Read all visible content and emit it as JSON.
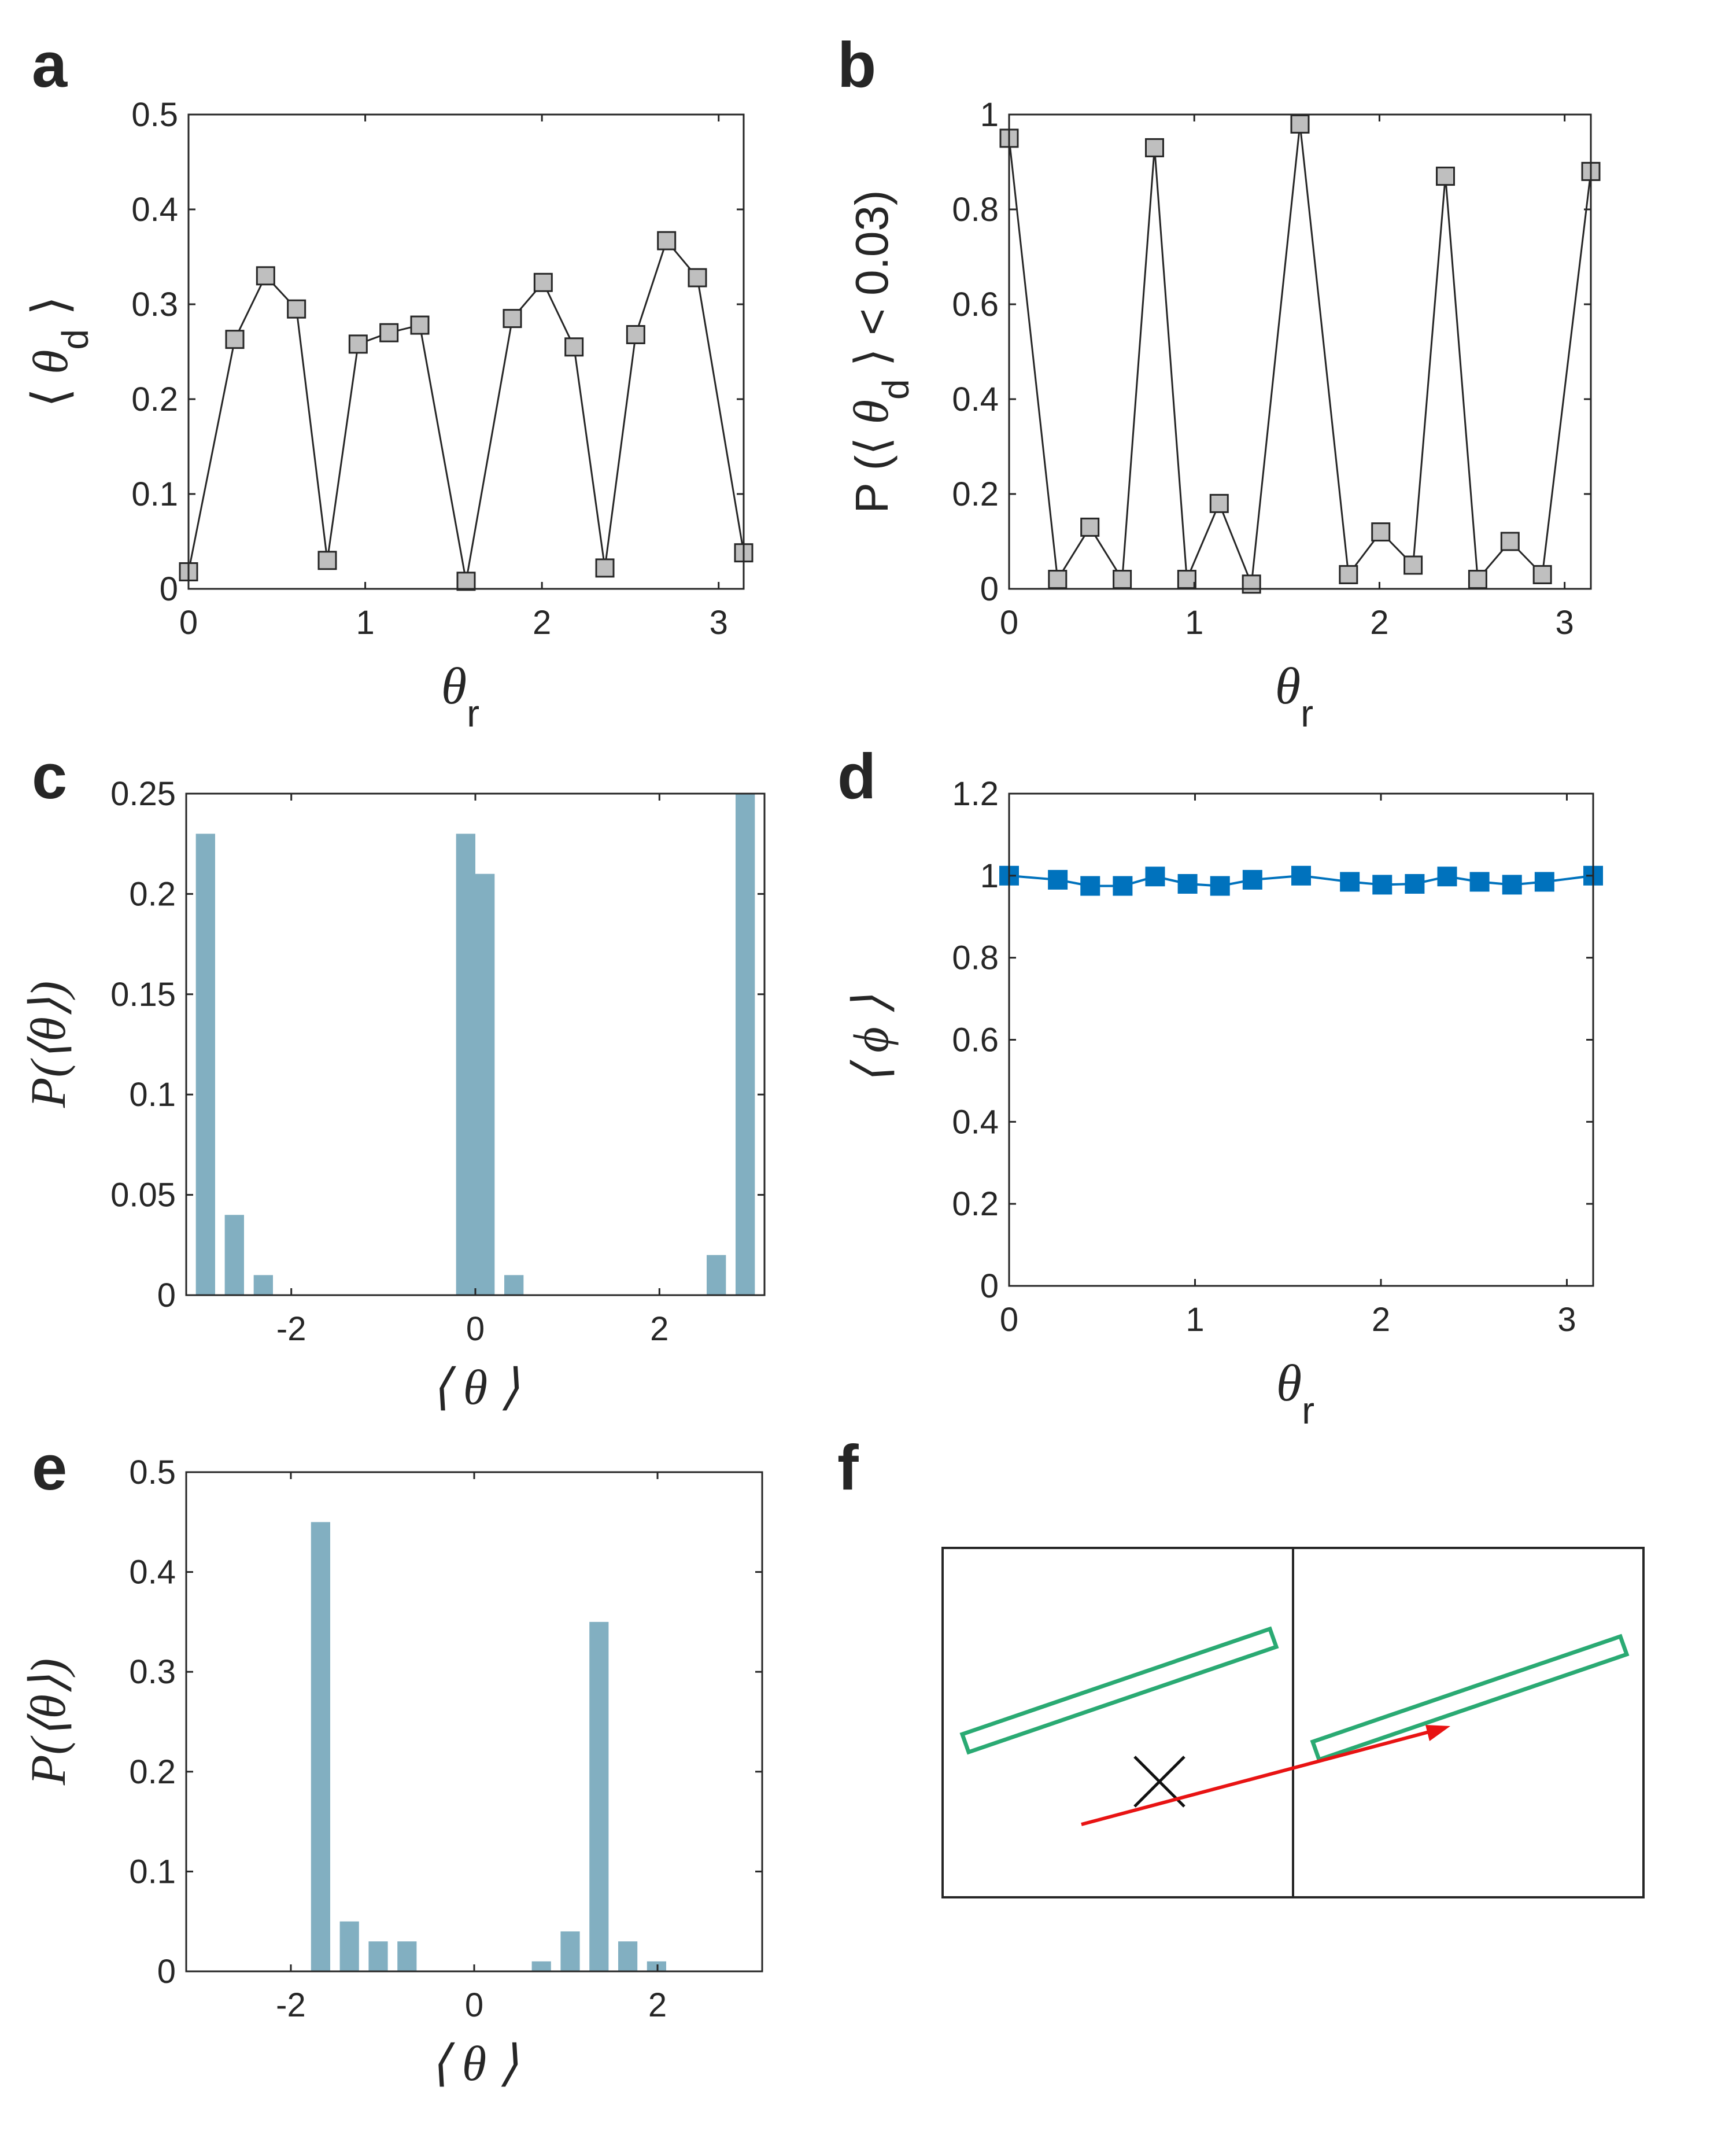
{
  "colors": {
    "axis": "#262626",
    "gray_marker": "#bfbfbf",
    "bar": "#82afc1",
    "blue": "#0072bd",
    "green": "#2aaa73",
    "red": "#e81313"
  },
  "chart_data": [
    {
      "panel": "a",
      "type": "line",
      "x": [
        0,
        0.2618,
        0.4363,
        0.6109,
        0.7854,
        0.9599,
        1.1345,
        1.309,
        1.5708,
        1.8326,
        2.0071,
        2.1817,
        2.3562,
        2.5307,
        2.7053,
        2.8798,
        3.1416
      ],
      "y": [
        0.018,
        0.263,
        0.33,
        0.295,
        0.03,
        0.258,
        0.27,
        0.278,
        0.008,
        0.285,
        0.323,
        0.255,
        0.022,
        0.268,
        0.367,
        0.328,
        0.038
      ],
      "xlim": [
        0,
        3.1416
      ],
      "ylim": [
        0,
        0.5
      ],
      "xticks": [
        0,
        1,
        2,
        3
      ],
      "yticks": [
        0,
        0.1,
        0.2,
        0.3,
        0.4,
        0.5
      ],
      "xtick_labels": [
        "0",
        "1",
        "2",
        "3"
      ],
      "ytick_labels": [
        "0",
        "0.1",
        "0.2",
        "0.3",
        "0.4",
        "0.5"
      ],
      "xlabel": {
        "main": "θ",
        "sub": "r"
      },
      "ylabel": {
        "left": "⟨",
        "main": "θ",
        "sub": "d",
        "right": "⟩"
      }
    },
    {
      "panel": "b",
      "type": "line",
      "x": [
        0,
        0.2618,
        0.4363,
        0.6109,
        0.7854,
        0.9599,
        1.1345,
        1.309,
        1.5708,
        1.8326,
        2.0071,
        2.1817,
        2.3562,
        2.5307,
        2.7053,
        2.8798,
        3.1416
      ],
      "y": [
        0.95,
        0.02,
        0.13,
        0.02,
        0.93,
        0.02,
        0.18,
        0.01,
        0.98,
        0.03,
        0.12,
        0.05,
        0.87,
        0.02,
        0.1,
        0.03,
        0.88
      ],
      "xlim": [
        0,
        3.1416
      ],
      "ylim": [
        0,
        1
      ],
      "xticks": [
        0,
        1,
        2,
        3
      ],
      "yticks": [
        0,
        0.2,
        0.4,
        0.6,
        0.8,
        1
      ],
      "xtick_labels": [
        "0",
        "1",
        "2",
        "3"
      ],
      "ytick_labels": [
        "0",
        "0.2",
        "0.4",
        "0.6",
        "0.8",
        "1"
      ],
      "xlabel": {
        "main": "θ",
        "sub": "r"
      },
      "ylabel": {
        "pre": "P (⟨ ",
        "main": "θ",
        "sub": "d",
        "post": " ⟩ < 0.03)"
      }
    },
    {
      "panel": "c",
      "type": "bar",
      "x": [
        -2.9322,
        -2.6181,
        -2.3038,
        -1.9897,
        -1.6755,
        -1.3614,
        -1.0472,
        -0.733,
        -0.4189,
        -0.1047,
        0.1047,
        0.4189,
        0.733,
        1.0472,
        1.3614,
        1.6755,
        1.9897,
        2.3038,
        2.6181,
        2.9322
      ],
      "values": [
        0.23,
        0.04,
        0.01,
        0,
        0,
        0,
        0,
        0,
        0,
        0.23,
        0.21,
        0.01,
        0,
        0,
        0,
        0,
        0,
        0,
        0.02,
        0.25
      ],
      "bar_width": 0.2618,
      "xlim": [
        -3.1416,
        3.1416
      ],
      "ylim": [
        0,
        0.25
      ],
      "xticks": [
        -2,
        0,
        2
      ],
      "yticks": [
        0,
        0.05,
        0.1,
        0.15,
        0.2,
        0.25
      ],
      "xtick_labels": [
        "-2",
        "0",
        "2"
      ],
      "ytick_labels": [
        "0",
        "0.05",
        "0.1",
        "0.15",
        "0.2",
        "0.25"
      ],
      "xlabel": "⟨ θ ⟩",
      "ylabel": "P(⟨θ⟩)"
    },
    {
      "panel": "d",
      "type": "line",
      "x": [
        0,
        0.2618,
        0.4363,
        0.6109,
        0.7854,
        0.9599,
        1.1345,
        1.309,
        1.5708,
        1.8326,
        2.0071,
        2.1817,
        2.3562,
        2.5307,
        2.7053,
        2.8798,
        3.1416
      ],
      "y": [
        1.0,
        0.99,
        0.975,
        0.975,
        0.998,
        0.98,
        0.975,
        0.99,
        1.0,
        0.985,
        0.978,
        0.98,
        0.998,
        0.985,
        0.978,
        0.985,
        1.0
      ],
      "xlim": [
        0,
        3.1416
      ],
      "ylim": [
        0,
        1.2
      ],
      "xticks": [
        0,
        1,
        2,
        3
      ],
      "yticks": [
        0,
        0.2,
        0.4,
        0.6,
        0.8,
        1,
        1.2
      ],
      "xtick_labels": [
        "0",
        "1",
        "2",
        "3"
      ],
      "ytick_labels": [
        "0",
        "0.2",
        "0.4",
        "0.6",
        "0.8",
        "1",
        "1.2"
      ],
      "xlabel": {
        "main": "θ",
        "sub": "r"
      },
      "ylabel": "⟨ ϕ ⟩"
    },
    {
      "panel": "e",
      "type": "bar",
      "x": [
        -2.9322,
        -2.6181,
        -2.3038,
        -1.9897,
        -1.6755,
        -1.3614,
        -1.0472,
        -0.733,
        -0.4189,
        -0.1047,
        0.1047,
        0.4189,
        0.733,
        1.0472,
        1.3614,
        1.6755,
        1.9897,
        2.3038,
        2.6181,
        2.9322
      ],
      "values": [
        0,
        0,
        0,
        0,
        0.45,
        0.05,
        0.03,
        0.03,
        0,
        0,
        0,
        0,
        0.01,
        0.04,
        0.35,
        0.03,
        0.01,
        0,
        0,
        0
      ],
      "bar_width": 0.2618,
      "xlim": [
        -3.1416,
        3.1416
      ],
      "ylim": [
        0,
        0.5
      ],
      "xticks": [
        -2,
        0,
        2
      ],
      "yticks": [
        0,
        0.1,
        0.2,
        0.3,
        0.4,
        0.5
      ],
      "xtick_labels": [
        "-2",
        "0",
        "2"
      ],
      "ytick_labels": [
        "0",
        "0.1",
        "0.2",
        "0.3",
        "0.4",
        "0.5"
      ],
      "xlabel": "⟨ θ ⟩",
      "ylabel": "P(⟨θ⟩)"
    }
  ],
  "panel_f": {
    "panel": "f",
    "type": "schematic",
    "marker": "cross",
    "arrow": "red-arrow",
    "rods": 2
  },
  "panel_labels": [
    "a",
    "b",
    "c",
    "d",
    "e",
    "f"
  ]
}
